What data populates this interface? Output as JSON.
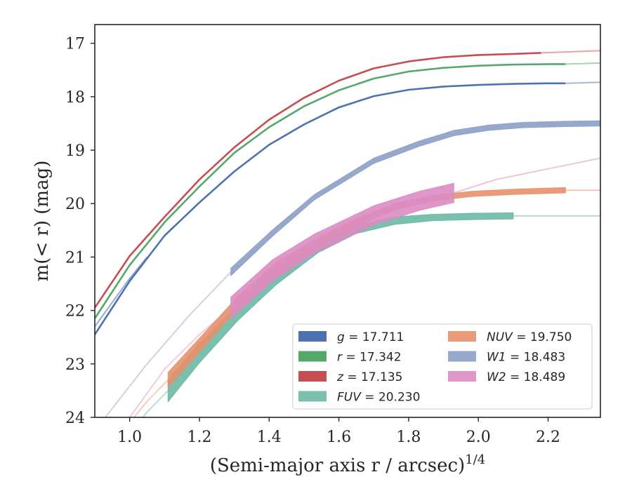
{
  "chart_data": {
    "type": "line",
    "xlabel": "(Semi-major axis r / arcsec)",
    "xlabel_superscript": "1/4",
    "ylabel": "m(< r) (mag)",
    "xlim": [
      0.9,
      2.35
    ],
    "ylim": [
      24,
      16.65
    ],
    "y_inverted": true,
    "xticks": [
      1.0,
      1.2,
      1.4,
      1.6,
      1.8,
      2.0,
      2.2
    ],
    "xtick_labels": [
      "1.0",
      "1.2",
      "1.4",
      "1.6",
      "1.8",
      "2.0",
      "2.2"
    ],
    "yticks": [
      17,
      18,
      19,
      20,
      21,
      22,
      23,
      24
    ],
    "ytick_labels": [
      "17",
      "18",
      "19",
      "20",
      "21",
      "22",
      "23",
      "24"
    ],
    "grid": false,
    "legend_position": "bottom-right",
    "series": [
      {
        "name": "g = 17.711",
        "legend_var": "g",
        "legend_value": "= 17.711",
        "color": "#4c72b0",
        "opacity": 1.0,
        "style": "line",
        "width": 2.6,
        "x": [
          0.9,
          1.0,
          1.1,
          1.2,
          1.3,
          1.4,
          1.5,
          1.6,
          1.7,
          1.8,
          1.9,
          2.0,
          2.1,
          2.2,
          2.25
        ],
        "y": [
          22.45,
          21.45,
          20.6,
          19.98,
          19.4,
          18.9,
          18.52,
          18.2,
          17.99,
          17.87,
          17.81,
          17.78,
          17.76,
          17.75,
          17.75
        ],
        "ext_x": [
          0.9,
          0.95,
          1.0,
          1.05
        ],
        "ext_y": [
          22.3,
          21.85,
          21.4,
          21.0
        ],
        "tail_x": [
          2.25,
          2.35
        ],
        "tail_y": [
          17.75,
          17.73
        ]
      },
      {
        "name": "r = 17.342",
        "legend_var": "r",
        "legend_value": "= 17.342",
        "color": "#55a868",
        "opacity": 1.0,
        "style": "line",
        "width": 2.6,
        "x": [
          0.9,
          1.0,
          1.1,
          1.2,
          1.3,
          1.4,
          1.5,
          1.6,
          1.7,
          1.8,
          1.9,
          2.0,
          2.1,
          2.2,
          2.25
        ],
        "y": [
          22.15,
          21.15,
          20.35,
          19.68,
          19.05,
          18.57,
          18.18,
          17.88,
          17.66,
          17.53,
          17.46,
          17.42,
          17.4,
          17.39,
          17.39
        ],
        "tail_x": [
          2.25,
          2.35
        ],
        "tail_y": [
          17.39,
          17.37
        ]
      },
      {
        "name": "z = 17.135",
        "legend_var": "z",
        "legend_value": "= 17.135",
        "color": "#c44e52",
        "opacity": 1.0,
        "style": "line",
        "width": 2.6,
        "x": [
          0.9,
          1.0,
          1.1,
          1.2,
          1.3,
          1.4,
          1.5,
          1.6,
          1.7,
          1.8,
          1.9,
          2.0,
          2.1,
          2.18
        ],
        "y": [
          21.95,
          20.98,
          20.25,
          19.55,
          18.95,
          18.43,
          18.02,
          17.7,
          17.47,
          17.34,
          17.26,
          17.22,
          17.2,
          17.18
        ],
        "tail_x": [
          2.18,
          2.35
        ],
        "tail_y": [
          17.18,
          17.14
        ]
      },
      {
        "name": "FUV = 20.230",
        "legend_var": "FUV",
        "legend_value": "= 20.230",
        "color": "#64b5a0",
        "opacity": 0.85,
        "style": "band",
        "x": [
          1.11,
          1.2,
          1.31,
          1.42,
          1.54,
          1.65,
          1.76,
          1.87,
          1.98,
          2.1
        ],
        "y": [
          23.5,
          22.8,
          22.05,
          21.4,
          20.82,
          20.48,
          20.32,
          20.26,
          20.24,
          20.23
        ],
        "dy": [
          0.21,
          0.18,
          0.14,
          0.12,
          0.1,
          0.08,
          0.07,
          0.06,
          0.06,
          0.06
        ],
        "pre_x": [
          1.0,
          1.05,
          1.11
        ],
        "pre_y": [
          24.3,
          23.9,
          23.5
        ],
        "tail_x": [
          2.1,
          2.35
        ],
        "tail_y": [
          20.23,
          20.23
        ]
      },
      {
        "name": "NUV = 19.750",
        "legend_var": "NUV",
        "legend_value": "= 19.750",
        "color": "#e8906a",
        "opacity": 0.9,
        "style": "band",
        "x": [
          1.11,
          1.2,
          1.31,
          1.42,
          1.54,
          1.65,
          1.76,
          1.87,
          1.98,
          2.1,
          2.25
        ],
        "y": [
          23.3,
          22.65,
          21.85,
          21.2,
          20.72,
          20.35,
          20.06,
          19.9,
          19.82,
          19.78,
          19.75
        ],
        "dy": [
          0.14,
          0.13,
          0.11,
          0.1,
          0.08,
          0.07,
          0.06,
          0.05,
          0.05,
          0.05,
          0.05
        ],
        "pre_x": [
          1.0,
          1.05,
          1.11
        ],
        "pre_y": [
          24.1,
          23.7,
          23.3
        ],
        "tail_x": [
          2.25,
          2.35
        ],
        "tail_y": [
          19.75,
          19.75
        ]
      },
      {
        "name": "W1 = 18.483",
        "legend_var": "W1",
        "legend_value": "= 18.483",
        "color": "#8c9ec8",
        "opacity": 0.9,
        "style": "band",
        "x": [
          1.29,
          1.41,
          1.53,
          1.7,
          1.83,
          1.93,
          2.03,
          2.13,
          2.25,
          2.35
        ],
        "y": [
          21.28,
          20.55,
          19.88,
          19.2,
          18.88,
          18.68,
          18.58,
          18.53,
          18.51,
          18.5
        ],
        "dy": [
          0.07,
          0.06,
          0.05,
          0.05,
          0.05,
          0.05,
          0.05,
          0.05,
          0.05,
          0.05
        ],
        "pre_x": [
          0.93,
          1.05,
          1.17,
          1.29
        ],
        "pre_y": [
          24.0,
          23.0,
          22.1,
          21.28
        ]
      },
      {
        "name": "W2 = 18.489",
        "legend_var": "W2",
        "legend_value": "= 18.489",
        "color": "#dc8cc3",
        "opacity": 0.9,
        "style": "band",
        "x": [
          1.29,
          1.41,
          1.53,
          1.7,
          1.83,
          1.93
        ],
        "y": [
          21.95,
          21.25,
          20.75,
          20.22,
          19.95,
          19.8
        ],
        "dy": [
          0.2,
          0.2,
          0.18,
          0.18,
          0.18,
          0.18
        ],
        "pre_x": [
          1.0,
          1.1,
          1.2,
          1.29
        ],
        "pre_y": [
          24.0,
          23.1,
          22.45,
          21.95
        ],
        "tail_x": [
          1.93,
          2.05,
          2.2,
          2.35
        ],
        "tail_y": [
          19.8,
          19.55,
          19.35,
          19.15
        ]
      }
    ]
  }
}
